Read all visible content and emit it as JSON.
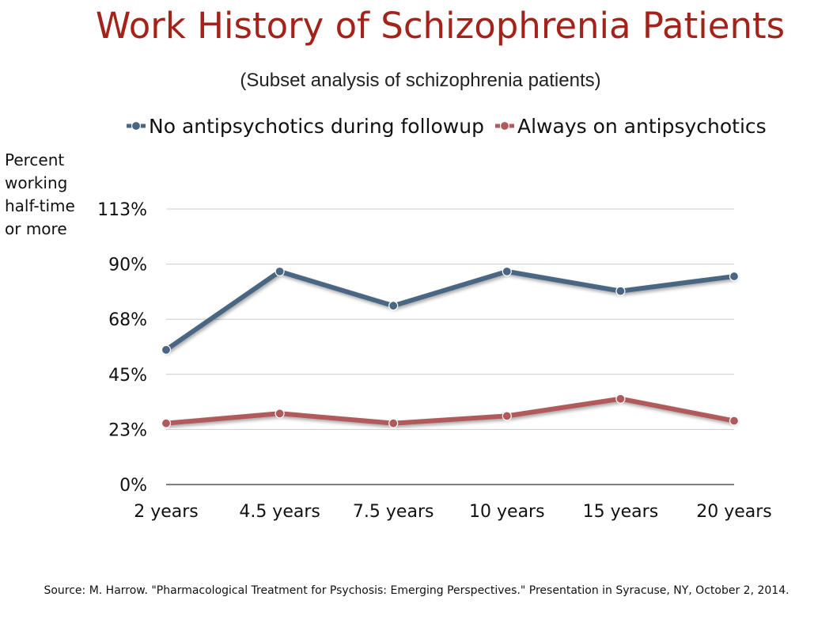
{
  "title": "Work History of Schizophrenia Patients",
  "subtitle": "(Subset analysis  of schizophrenia  patients)",
  "source": "Source: M. Harrow. \"Pharmacological Treatment for Psychosis: Emerging Perspectives.\" Presentation in Syracuse, NY, October 2, 2014.",
  "chart_data": {
    "type": "line",
    "title": "Work History of Schizophrenia Patients",
    "subtitle": "(Subset analysis  of schizophrenia  patients)",
    "ylabel": "Percent working half-time or more",
    "xlabel": "",
    "categories": [
      "2 years",
      "4.5 years",
      "7.5 years",
      "10 years",
      "15 years",
      "20 years"
    ],
    "y_ticks": [
      0,
      22.5,
      45,
      67.5,
      90,
      112.5
    ],
    "y_tick_labels": [
      "0%",
      "23%",
      "45%",
      "68%",
      "90%",
      "113%"
    ],
    "ylim": [
      0,
      112.5
    ],
    "grid": "horizontal",
    "legend_position": "top",
    "series": [
      {
        "name": "No antipsychotics during followup",
        "color": "#4a6683",
        "values": [
          55,
          87,
          73,
          87,
          79,
          85
        ]
      },
      {
        "name": "Always on antipsychotics",
        "color": "#b05a5c",
        "values": [
          25,
          29,
          25,
          28,
          35,
          26
        ]
      }
    ]
  }
}
